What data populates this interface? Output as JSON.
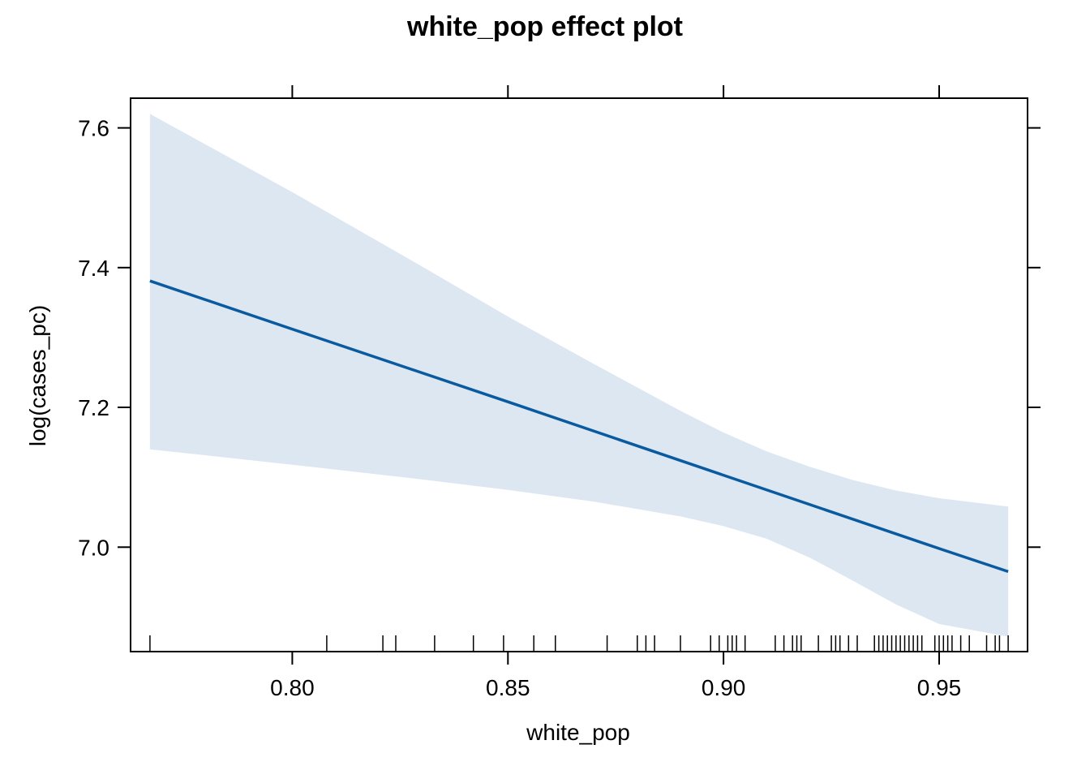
{
  "chart_data": {
    "type": "line",
    "title": "white_pop effect plot",
    "xlabel": "white_pop",
    "ylabel": "log(cases_pc)",
    "xlim": [
      0.7625,
      0.9705
    ],
    "ylim": [
      6.8505,
      7.6425
    ],
    "x_ticks": [
      "0.80",
      "0.85",
      "0.90",
      "0.95"
    ],
    "y_ticks": [
      "7.0",
      "7.2",
      "7.4",
      "7.6"
    ],
    "grid": false,
    "legend": "none",
    "series": [
      {
        "x": [
          0.767,
          0.8,
          0.85,
          0.9,
          0.95,
          0.966
        ],
        "y": [
          7.381,
          7.312,
          7.208,
          7.103,
          6.998,
          6.965
        ]
      }
    ],
    "confidence_band": {
      "x": [
        0.767,
        0.8,
        0.83,
        0.85,
        0.87,
        0.89,
        0.9,
        0.91,
        0.92,
        0.93,
        0.94,
        0.95,
        0.966
      ],
      "lower": [
        7.14,
        7.118,
        7.097,
        7.082,
        7.065,
        7.044,
        7.03,
        7.012,
        6.985,
        6.952,
        6.918,
        6.89,
        6.872
      ],
      "upper": [
        7.62,
        7.508,
        7.402,
        7.33,
        7.262,
        7.195,
        7.164,
        7.137,
        7.115,
        7.096,
        7.081,
        7.07,
        7.058
      ]
    },
    "rug_x": [
      0.767,
      0.808,
      0.821,
      0.824,
      0.833,
      0.842,
      0.849,
      0.856,
      0.861,
      0.873,
      0.88,
      0.882,
      0.884,
      0.89,
      0.897,
      0.899,
      0.901,
      0.902,
      0.903,
      0.905,
      0.912,
      0.914,
      0.916,
      0.917,
      0.918,
      0.922,
      0.925,
      0.926,
      0.927,
      0.929,
      0.931,
      0.935,
      0.936,
      0.937,
      0.938,
      0.939,
      0.94,
      0.941,
      0.942,
      0.943,
      0.944,
      0.945,
      0.946,
      0.949,
      0.95,
      0.951,
      0.952,
      0.953,
      0.955,
      0.957,
      0.961,
      0.963,
      0.964,
      0.966
    ],
    "colors": {
      "line": "#0a5aa0",
      "band": "#dce7f2",
      "axis": "#000000"
    }
  }
}
